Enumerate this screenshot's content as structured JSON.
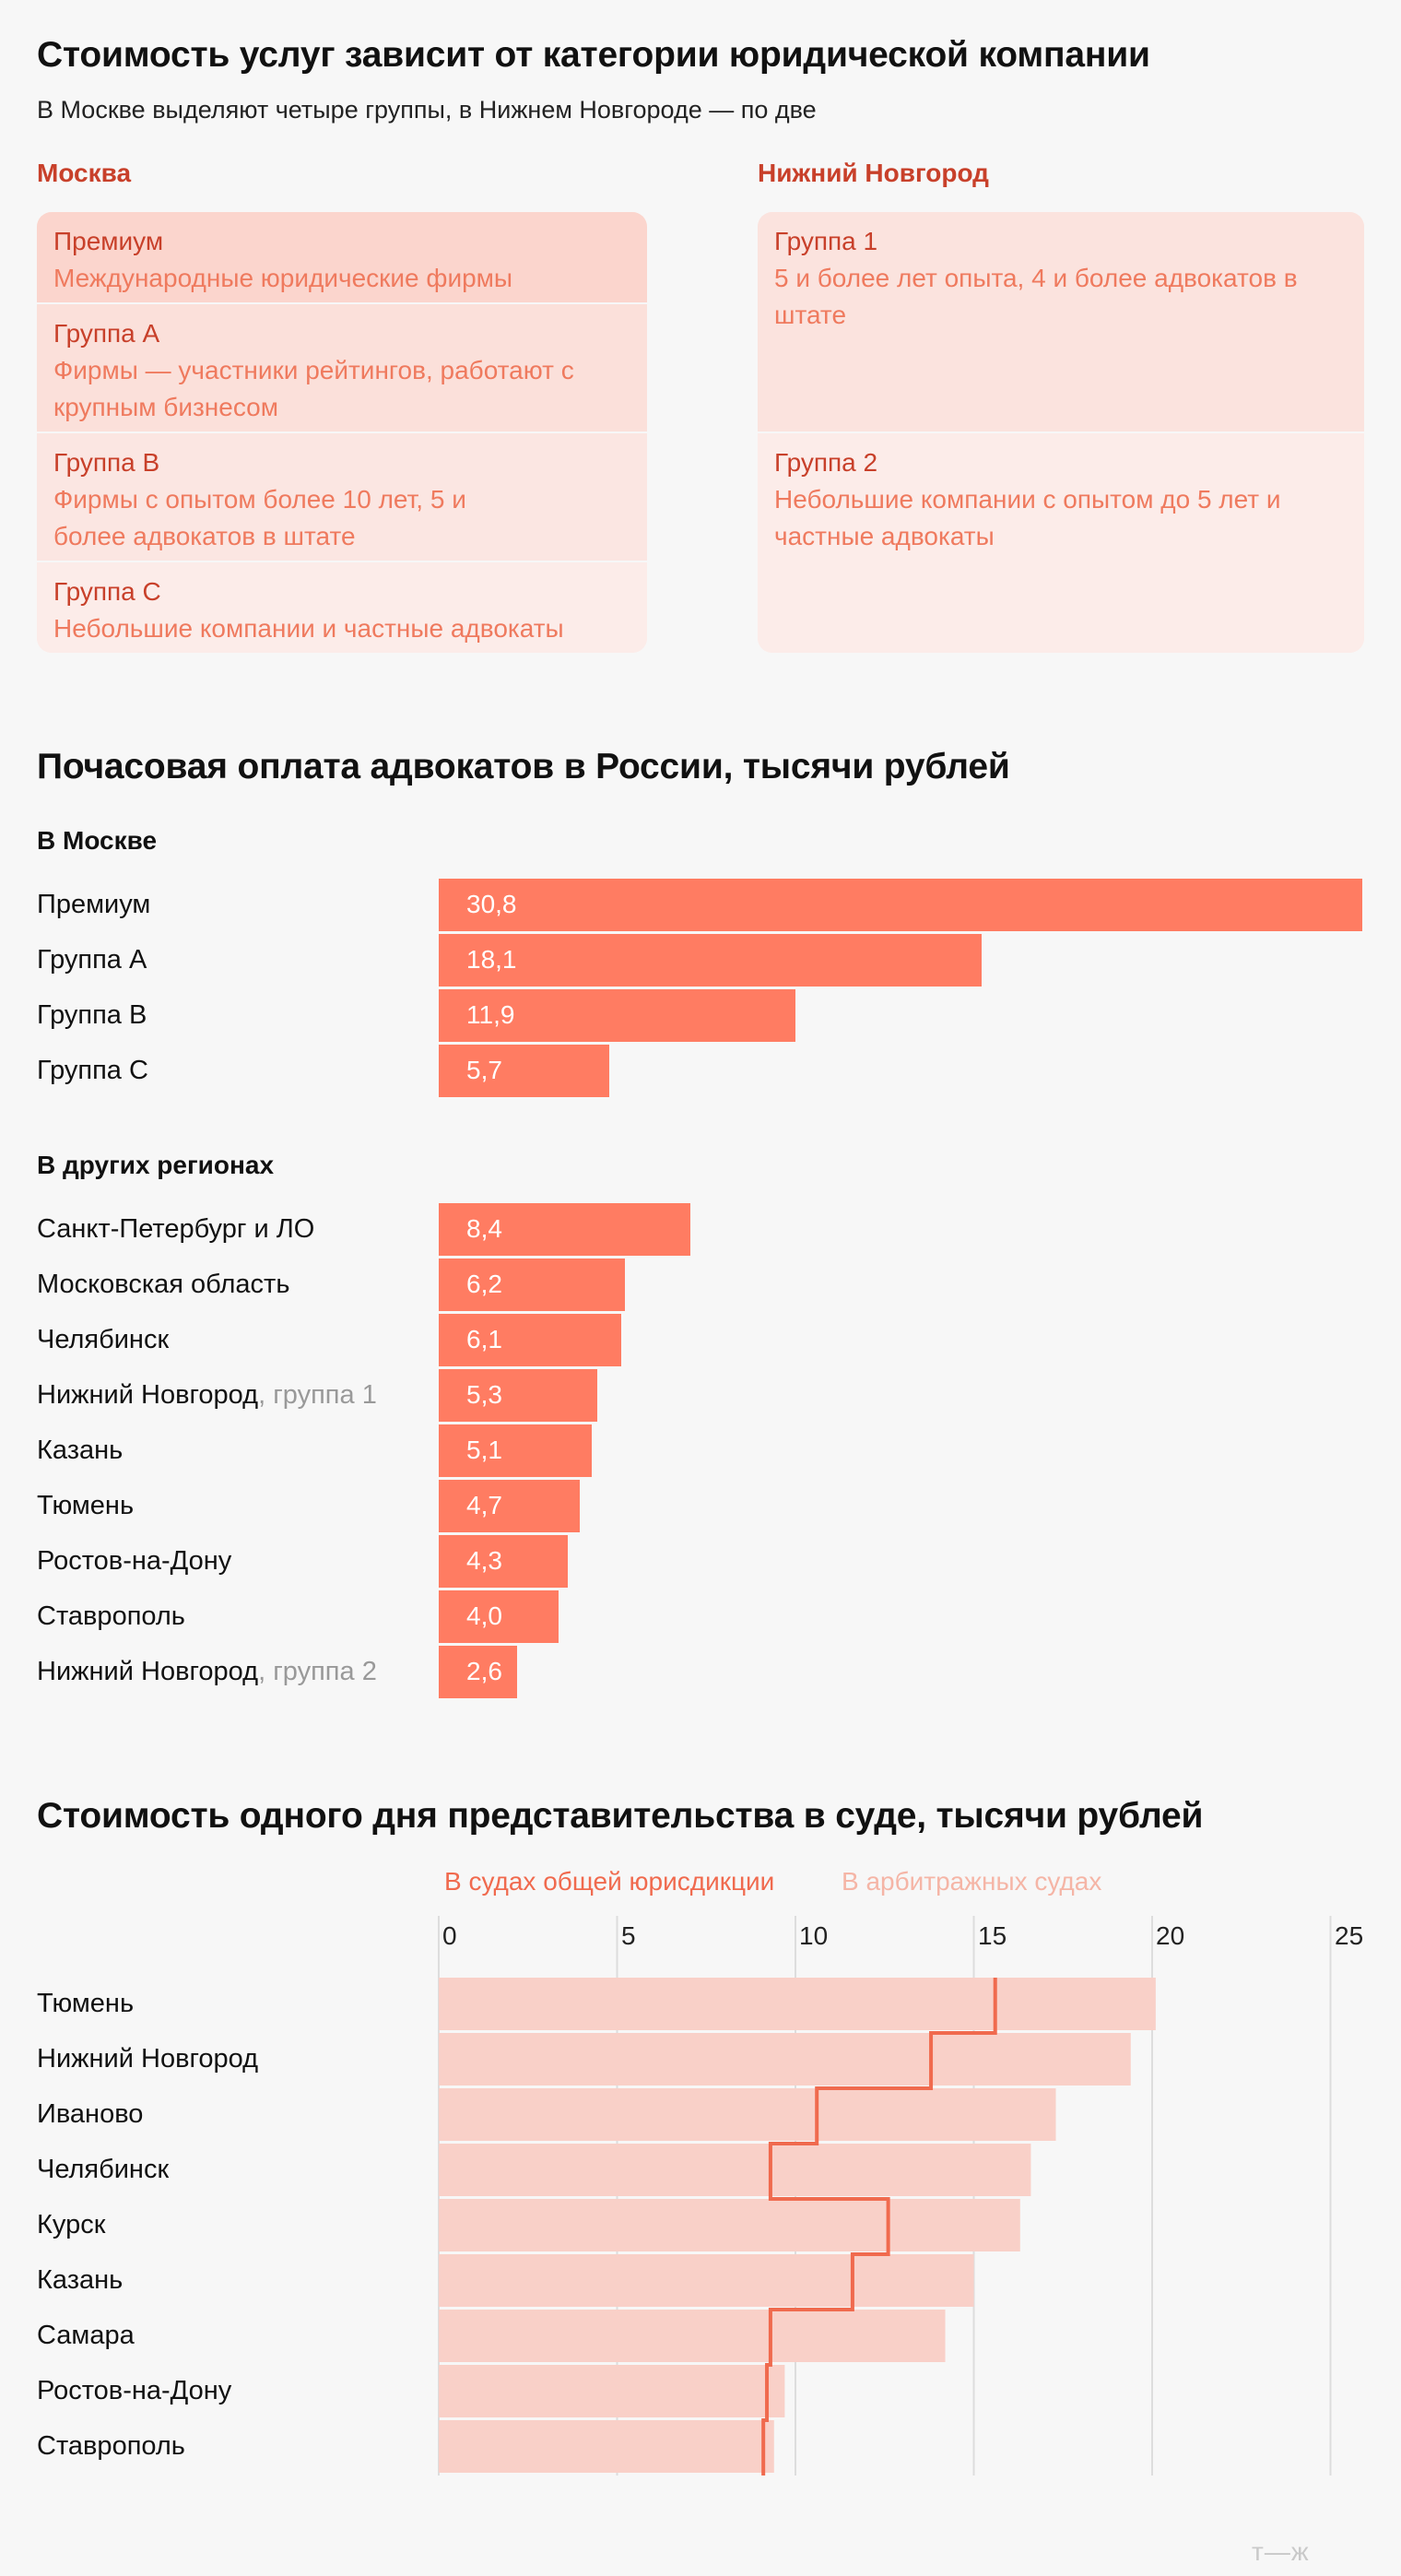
{
  "section1": {
    "title": "Стоимость услуг зависит от категории юридической компании",
    "subtitle": "В Москве выделяют четыре группы, в Нижнем Новгороде — по две",
    "moscow": {
      "title": "Москва",
      "groups": [
        {
          "name": "Премиум",
          "desc": "Международные юридические фирмы"
        },
        {
          "name": "Группа А",
          "desc": "Фирмы — участники рейтингов, работают с крупным бизнесом"
        },
        {
          "name": "Группа B",
          "desc": "Фирмы с опытом более 10 лет, 5 и более адвокатов в штате"
        },
        {
          "name": "Группа C",
          "desc": "Небольшие компании и частные адвокаты"
        }
      ]
    },
    "nn": {
      "title": "Нижний Новгород",
      "groups": [
        {
          "name": "Группа 1",
          "desc": "5 и более лет опыта, 4 и более адвокатов в штате"
        },
        {
          "name": "Группа 2",
          "desc": "Небольшие компании с опытом до 5 лет и частные адвокаты"
        }
      ]
    }
  },
  "section2": {
    "title": "Почасовая оплата адвокатов в России, тысячи рублей",
    "moscow_label": "В Москве",
    "regions_label": "В других регионах"
  },
  "section3": {
    "title": "Стоимость одного дня представительства в суде, тысячи рублей",
    "legend_general": "В судах общей юрисдикции",
    "legend_arbitration": "В арбитражных судах"
  },
  "logo": "т—ж",
  "colors": {
    "bar": "#ff7c62",
    "general_line": "#f06a4e",
    "arbitration_bar": "#f9d0c8",
    "premium_cell": "#fbd5cd",
    "title_red": "#c8402a"
  },
  "chart_data": [
    {
      "type": "bar",
      "orientation": "horizontal",
      "group": "В Москве",
      "categories": [
        "Премиум",
        "Группа А",
        "Группа B",
        "Группа C"
      ],
      "values": [
        30.8,
        18.1,
        11.9,
        5.7
      ],
      "value_labels": [
        "30,8",
        "18,1",
        "11,9",
        "5,7"
      ]
    },
    {
      "type": "bar",
      "orientation": "horizontal",
      "group": "В других регионах",
      "categories": [
        "Санкт-Петербург и ЛО",
        "Московская область",
        "Челябинск",
        "Нижний Новгород",
        "Казань",
        "Тюмень",
        "Ростов-на-Дону",
        "Ставрополь",
        "Нижний Новгород"
      ],
      "category_suffixes": [
        "",
        "",
        "",
        ", группа 1",
        "",
        "",
        "",
        "",
        ", группа 2"
      ],
      "values": [
        8.4,
        6.2,
        6.1,
        5.3,
        5.1,
        4.7,
        4.3,
        4.0,
        2.6
      ],
      "value_labels": [
        "8,4",
        "6,2",
        "6,1",
        "5,3",
        "5,1",
        "4,7",
        "4,3",
        "4,0",
        "2,6"
      ]
    },
    {
      "type": "bar",
      "orientation": "horizontal",
      "categories": [
        "Тюмень",
        "Нижний Новгород",
        "Иваново",
        "Челябинск",
        "Курск",
        "Казань",
        "Самара",
        "Ростов-на-Дону",
        "Ставрополь"
      ],
      "x_ticks": [
        0,
        5,
        10,
        15,
        20,
        25
      ],
      "xlim": [
        0,
        26
      ],
      "grid": true,
      "series": [
        {
          "name": "В арбитражных судах",
          "render": "bar",
          "values": [
            20.1,
            19.4,
            17.3,
            16.6,
            16.3,
            15.0,
            14.2,
            9.7,
            9.4
          ]
        },
        {
          "name": "В судах общей юрисдикции",
          "render": "step-line",
          "values": [
            15.6,
            13.8,
            10.6,
            9.3,
            12.6,
            11.6,
            9.3,
            9.2,
            9.1
          ]
        }
      ]
    }
  ]
}
